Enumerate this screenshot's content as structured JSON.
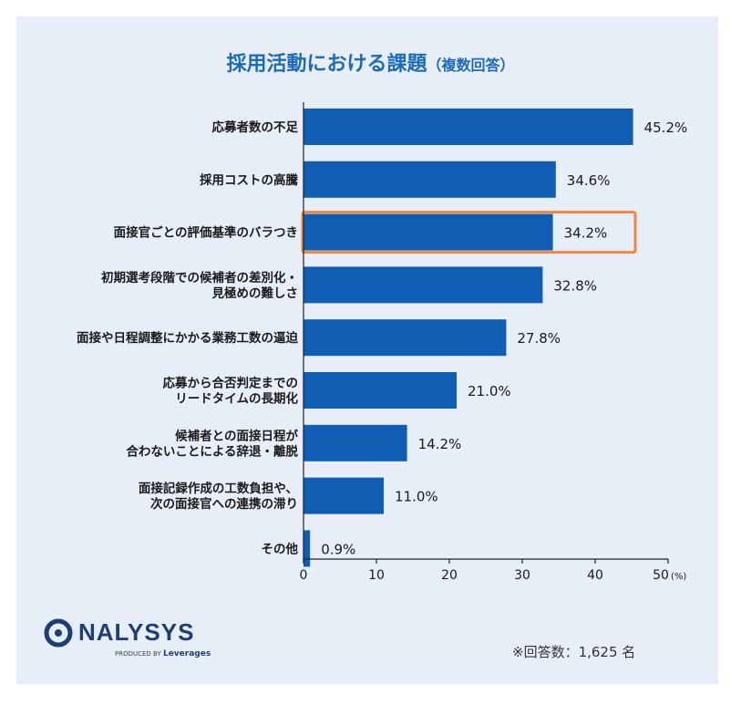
{
  "title": "採用活動における課題",
  "title_note": "（複数回答）",
  "logo": {
    "name": "NALYSYS",
    "produced_by": "PRODUCED BY",
    "brand": "Leverages"
  },
  "respondents_note": "※回答数：1,625 名",
  "colors": {
    "bar": "#0f5eb4",
    "highlight": "#f0873c",
    "title": "#1b6bb8",
    "panel": "#e8eef8"
  },
  "chart_data": {
    "type": "bar",
    "orientation": "horizontal",
    "title": "採用活動における課題（複数回答）",
    "categories": [
      [
        "応募者数の不足"
      ],
      [
        "採用コストの高騰"
      ],
      [
        "面接官ごとの評価基準のバラつき"
      ],
      [
        "初期選考段階での候補者の差別化・",
        "見極めの難しさ"
      ],
      [
        "面接や日程調整にかかる業務工数の逼迫"
      ],
      [
        "応募から合否判定までの",
        "リードタイムの長期化"
      ],
      [
        "候補者との面接日程が",
        "合わないことによる辞退・離脱"
      ],
      [
        "面接記録作成の工数負担や、",
        "次の面接官への連携の滞り"
      ],
      [
        "その他"
      ]
    ],
    "values": [
      45.2,
      34.6,
      34.2,
      32.8,
      27.8,
      21.0,
      14.2,
      11.0,
      0.9
    ],
    "value_labels": [
      "45.2%",
      "34.6%",
      "34.2%",
      "32.8%",
      "27.8%",
      "21.0%",
      "14.2%",
      "11.0%",
      "0.9%"
    ],
    "highlighted_index": 2,
    "xlim": [
      0,
      50
    ],
    "xticks": [
      "0",
      "10",
      "20",
      "30",
      "40",
      "50"
    ],
    "x_unit": "(%)",
    "grid": false
  }
}
